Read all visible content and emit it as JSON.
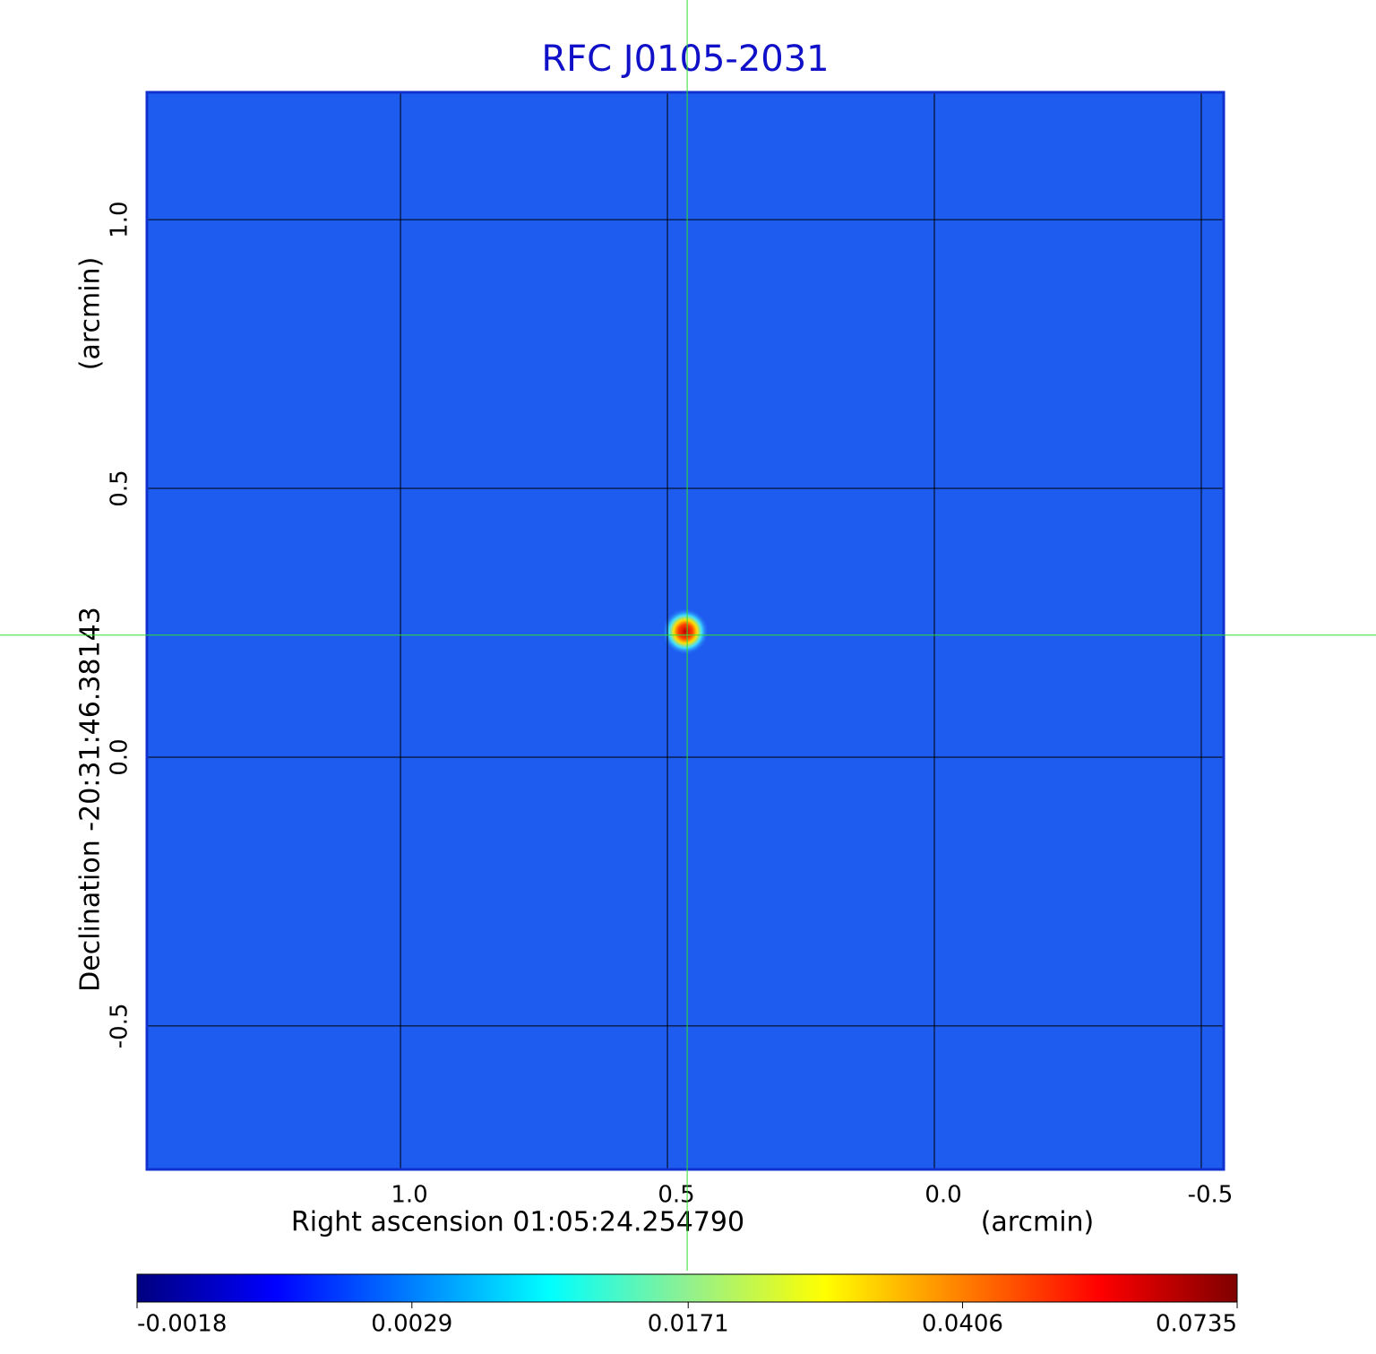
{
  "chart_data": {
    "type": "image",
    "title": "RFC J0105-2031",
    "xlabel": "Right ascension  01:05:24.254790",
    "xunit": "(arcmin)",
    "ylabel": "Declination  -20:31:46.38143",
    "yunit": "(arcmin)",
    "xlim": [
      1.475,
      -0.542
    ],
    "ylim": [
      -0.767,
      1.237
    ],
    "xticks": [
      {
        "value": 1,
        "label": "1.0"
      },
      0.5,
      {
        "value": 0,
        "label": "0.0"
      },
      -0.5
    ],
    "yticks": [
      {
        "value": 1,
        "label": "1.0"
      },
      0.5,
      {
        "value": 0,
        "label": "0.0"
      },
      -0.5
    ],
    "grid": true,
    "crosshair": {
      "x": 0.463,
      "y": 0.227
    },
    "colorbar": {
      "scale": "sqrt",
      "lim": [
        -0.0018,
        0.0735
      ],
      "ticks": [
        -0.0018,
        0.0029,
        0.0171,
        0.0406,
        0.0735
      ]
    }
  }
}
